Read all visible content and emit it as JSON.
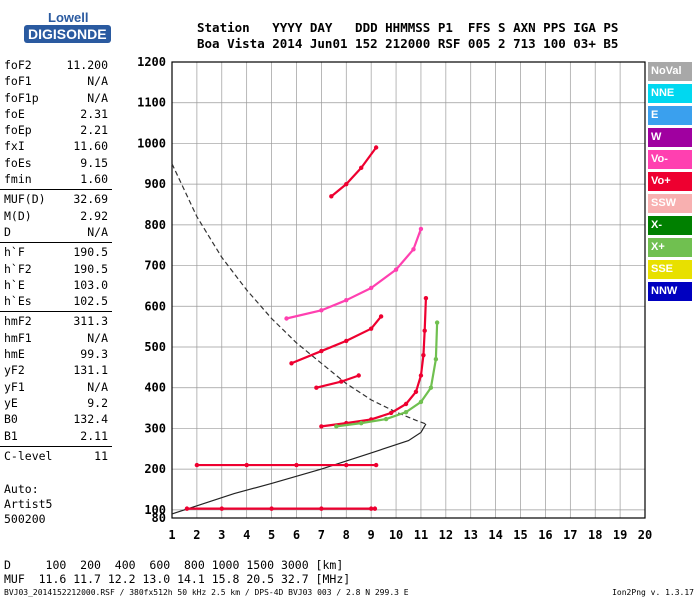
{
  "logo": {
    "line1": "Lowell",
    "line2": "DIGISONDE"
  },
  "header": {
    "row1": "Station   YYYY DAY   DDD HHMMSS P1  FFS S AXN PPS IGA PS",
    "row2": "Boa Vista 2014 Jun01 152 212000 RSF 005 2 713 100 03+ B5"
  },
  "params": [
    {
      "group": [
        {
          "name": "foF2",
          "value": "11.200"
        },
        {
          "name": "foF1",
          "value": "N/A"
        },
        {
          "name": "foF1p",
          "value": "N/A"
        },
        {
          "name": "foE",
          "value": "2.31"
        },
        {
          "name": "foEp",
          "value": "2.21"
        },
        {
          "name": "fxI",
          "value": "11.60"
        },
        {
          "name": "foEs",
          "value": "9.15"
        },
        {
          "name": "fmin",
          "value": "1.60"
        }
      ]
    },
    {
      "group": [
        {
          "name": "MUF(D)",
          "value": "32.69"
        },
        {
          "name": "M(D)",
          "value": "2.92"
        },
        {
          "name": "D",
          "value": "N/A"
        }
      ]
    },
    {
      "group": [
        {
          "name": "h`F",
          "value": "190.5"
        },
        {
          "name": "h`F2",
          "value": "190.5"
        },
        {
          "name": "h`E",
          "value": "103.0"
        },
        {
          "name": "h`Es",
          "value": "102.5"
        }
      ]
    },
    {
      "group": [
        {
          "name": "hmF2",
          "value": "311.3"
        },
        {
          "name": "hmF1",
          "value": "N/A"
        },
        {
          "name": "hmE",
          "value": "99.3"
        },
        {
          "name": "yF2",
          "value": "131.1"
        },
        {
          "name": "yF1",
          "value": "N/A"
        },
        {
          "name": "yE",
          "value": "9.2"
        },
        {
          "name": "B0",
          "value": "132.4"
        },
        {
          "name": "B1",
          "value": "2.11"
        }
      ]
    },
    {
      "group": [
        {
          "name": "C-level",
          "value": "11"
        }
      ]
    }
  ],
  "auto": {
    "line1": "Auto:",
    "line2": "Artist5",
    "line3": "500200"
  },
  "legend": [
    {
      "label": "NoVal",
      "color": "#a8a8a8"
    },
    {
      "label": "NNE",
      "color": "#00d8f0"
    },
    {
      "label": "E",
      "color": "#3aa0ee"
    },
    {
      "label": "W",
      "color": "#a000a0"
    },
    {
      "label": "Vo-",
      "color": "#ff40b0"
    },
    {
      "label": "Vo+",
      "color": "#ee0030"
    },
    {
      "label": "SSW",
      "color": "#f8b0b0"
    },
    {
      "label": "X-",
      "color": "#008000"
    },
    {
      "label": "X+",
      "color": "#70c050"
    },
    {
      "label": "SSE",
      "color": "#e8e000"
    },
    {
      "label": "NNW",
      "color": "#0000c0"
    }
  ],
  "muf_table": {
    "d_row": "D     100  200  400  600  800 1000 1500 3000 [km]",
    "muf_row": "MUF  11.6 11.7 12.2 13.0 14.1 15.8 20.5 32.7 [MHz]"
  },
  "footer": {
    "left": "BVJ03_2014152212000.RSF / 380fx512h 50 kHz 2.5 km / DPS-4D BVJ03 003 / 2.8 N 299.3 E",
    "right": "Ion2Png v. 1.3.17"
  },
  "chart_data": {
    "type": "scatter",
    "x_ticks": [
      1,
      2,
      3,
      4,
      5,
      6,
      7,
      8,
      9,
      10,
      11,
      12,
      13,
      14,
      15,
      16,
      17,
      18,
      19,
      20
    ],
    "y_ticks": [
      80,
      100,
      200,
      300,
      400,
      500,
      600,
      700,
      800,
      900,
      1000,
      1100,
      1200
    ],
    "xlim": [
      1,
      20
    ],
    "ylim": [
      80,
      1200
    ],
    "grid": true,
    "legend_position": "right",
    "traces": [
      {
        "name": "O-trace F2",
        "color": "#ee0030",
        "x": [
          7.0,
          8.0,
          9.0,
          9.8,
          10.4,
          10.8,
          11.0,
          11.1,
          11.15,
          11.2
        ],
        "y": [
          305,
          313,
          322,
          338,
          360,
          390,
          430,
          480,
          540,
          620
        ]
      },
      {
        "name": "X-trace F2",
        "color": "#70c050",
        "x": [
          7.6,
          8.6,
          9.6,
          10.4,
          11.0,
          11.4,
          11.6,
          11.65
        ],
        "y": [
          305,
          313,
          323,
          340,
          365,
          400,
          470,
          560
        ]
      },
      {
        "name": "Es",
        "color": "#ee0030",
        "x": [
          1.6,
          3,
          5,
          7,
          9,
          9.15
        ],
        "y": [
          103,
          103,
          103,
          103,
          103,
          103
        ]
      },
      {
        "name": "2Es",
        "color": "#ee0030",
        "x": [
          2.0,
          4,
          6,
          8,
          9.2
        ],
        "y": [
          210,
          210,
          210,
          210,
          210
        ]
      },
      {
        "name": "2F1",
        "color": "#ff40b0",
        "x": [
          5.6,
          7,
          8,
          9,
          10,
          10.7,
          11.0
        ],
        "y": [
          570,
          590,
          615,
          645,
          690,
          740,
          790
        ]
      },
      {
        "name": "2F2",
        "color": "#ee0030",
        "x": [
          5.8,
          7,
          8,
          9,
          9.4
        ],
        "y": [
          460,
          490,
          515,
          545,
          575
        ]
      },
      {
        "name": "3F",
        "color": "#ee0030",
        "x": [
          6.8,
          7.8,
          8.5
        ],
        "y": [
          400,
          415,
          430
        ]
      },
      {
        "name": "high",
        "color": "#ee0030",
        "x": [
          7.4,
          8,
          8.6,
          9.2
        ],
        "y": [
          870,
          900,
          940,
          990
        ]
      }
    ],
    "profile_solid": {
      "x": [
        1.0,
        2.0,
        3.5,
        5.0,
        7.0,
        9.0,
        10.5,
        11.0,
        11.2
      ],
      "y": [
        90,
        110,
        140,
        165,
        200,
        240,
        270,
        290,
        311
      ]
    },
    "profile_dashed": {
      "x": [
        1.0,
        2.0,
        3.0,
        4.0,
        5.0,
        6.0,
        7.0,
        8.0,
        9.0,
        10.0,
        10.8,
        11.2
      ],
      "y": [
        950,
        820,
        720,
        640,
        570,
        510,
        460,
        410,
        370,
        340,
        320,
        311
      ]
    }
  }
}
